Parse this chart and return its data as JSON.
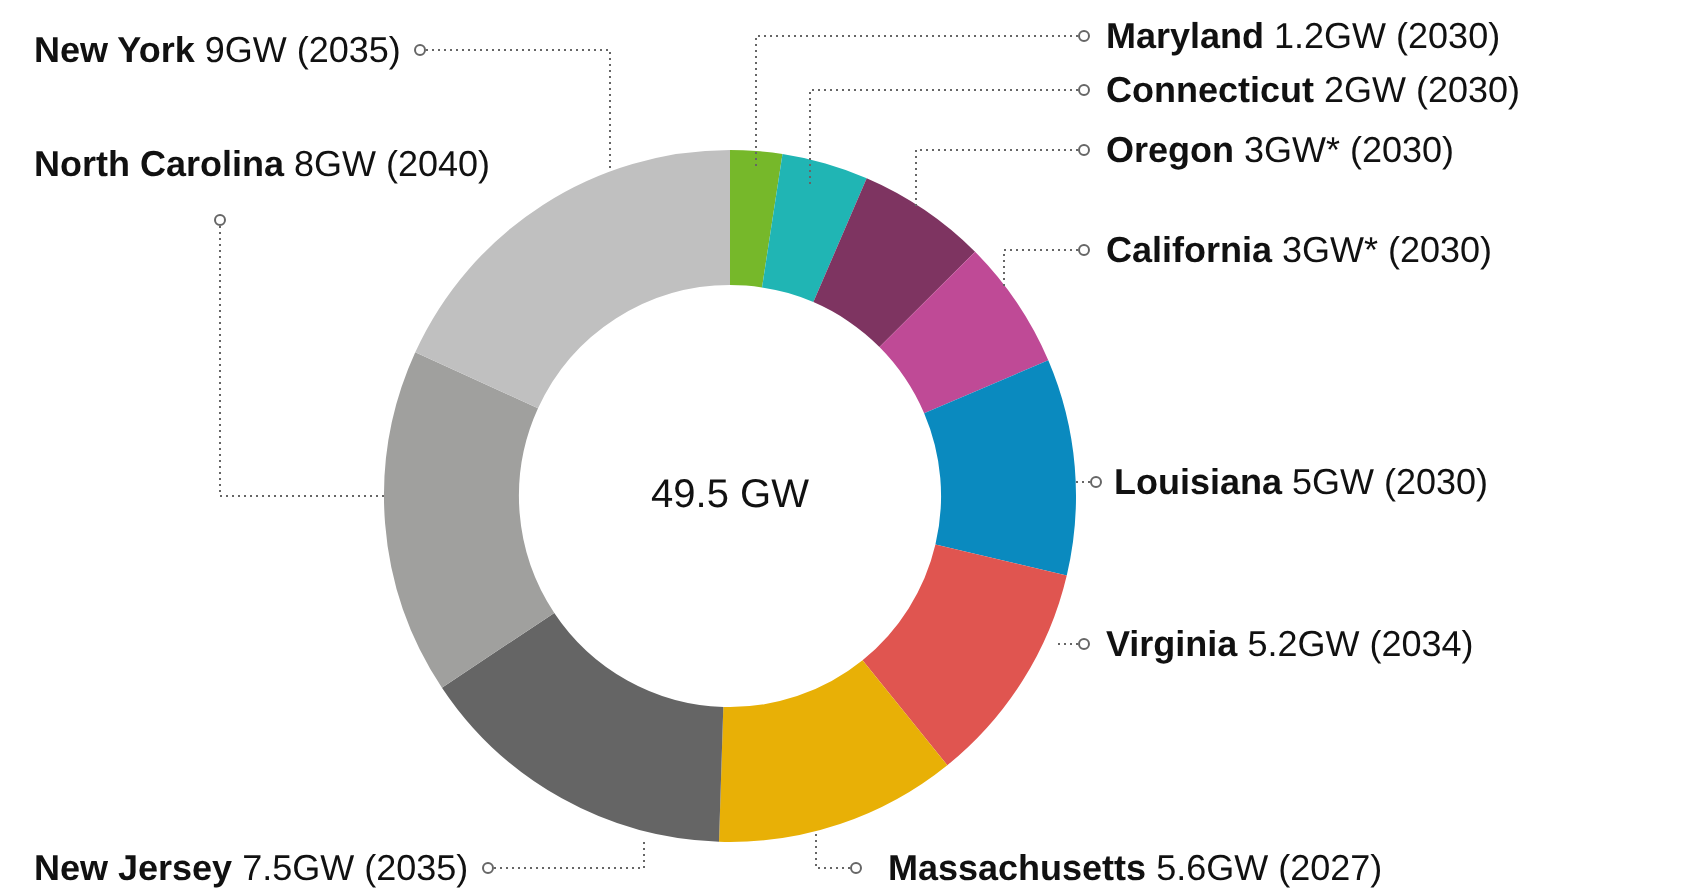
{
  "chart_data": {
    "type": "donut",
    "categories": [
      "Maryland",
      "Connecticut",
      "Oregon",
      "California",
      "Louisiana",
      "Virginia",
      "Massachusetts",
      "New Jersey",
      "North Carolina",
      "New York"
    ],
    "values": [
      1.2,
      2,
      3,
      3,
      5,
      5.2,
      5.6,
      7.5,
      8,
      9
    ],
    "value_labels": [
      "1.2GW (2030)",
      "2GW (2030)",
      "3GW* (2030)",
      "3GW* (2030)",
      "5GW (2030)",
      "5.2GW (2034)",
      "5.6GW (2027)",
      "7.5GW (2035)",
      "8GW (2040)",
      "9GW (2035)"
    ],
    "colors": [
      "#76b82a",
      "#20b5b4",
      "#7e3461",
      "#bf4a96",
      "#0a8abf",
      "#e05550",
      "#e8b006",
      "#656565",
      "#a0a09e",
      "#c0c0c0"
    ],
    "annotations": [
      "49.5 GW"
    ],
    "legend": false
  }
}
